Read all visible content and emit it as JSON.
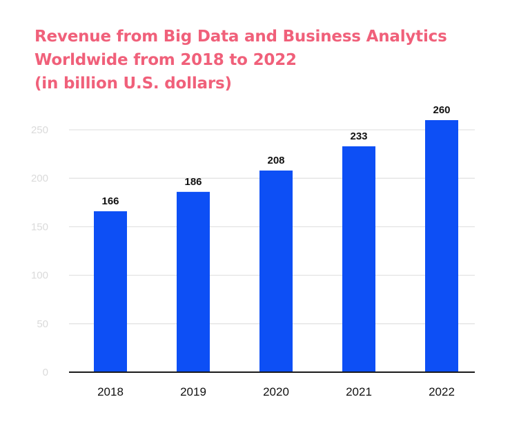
{
  "chart_data": {
    "type": "bar",
    "title": "Revenue from Big Data and Business Analytics Worldwide from 2018 to 2022 (in billion U.S. dollars)",
    "title_lines": [
      "Revenue from Big Data and Business Analytics",
      "Worldwide from 2018 to 2022",
      "(in billion U.S. dollars)"
    ],
    "categories": [
      "2018",
      "2019",
      "2020",
      "2021",
      "2022"
    ],
    "values": [
      166,
      186,
      208,
      233,
      260
    ],
    "data_labels": [
      "166",
      "186",
      "208",
      "233",
      "260"
    ],
    "xlabel": "",
    "ylabel": "",
    "ylim": [
      0,
      250
    ],
    "yticks": [
      0,
      50,
      100,
      150,
      200,
      250
    ],
    "ytick_labels": [
      "0",
      "50",
      "100",
      "150",
      "200",
      "250"
    ],
    "grid": true,
    "legend": "none",
    "colors": {
      "bar": "#0d4ff5",
      "title": "#f0607a",
      "grid": "#e3e3e3",
      "axis": "#1a1a1a",
      "tick_label": "#dadada",
      "text": "#111111"
    }
  }
}
